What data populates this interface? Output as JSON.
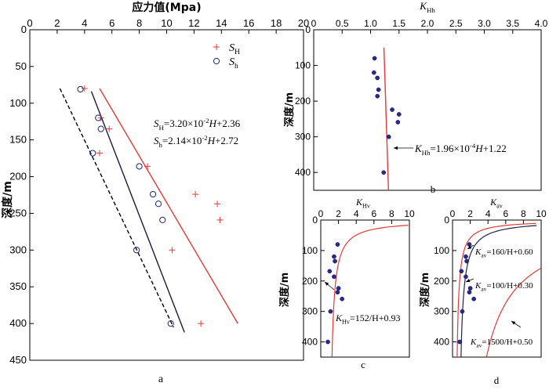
{
  "chart_data": [
    {
      "id": "a",
      "type": "scatter",
      "panel_label": "a",
      "x_title": "应力值(Mpa)",
      "y_title": "深度/m",
      "xlim": [
        0,
        20
      ],
      "ylim": [
        0,
        450
      ],
      "y_inverted": true,
      "x_ticks": [
        "0",
        "2",
        "4",
        "6",
        "8",
        "10",
        "12",
        "14",
        "16",
        "18",
        "20"
      ],
      "y_ticks": [
        "0",
        "50",
        "100",
        "150",
        "200",
        "250",
        "300",
        "350",
        "400",
        "450"
      ],
      "legend": [
        {
          "main": "S",
          "sub": "H",
          "marker": "plus",
          "color": "#e53935"
        },
        {
          "main": "S",
          "sub": "h",
          "marker": "circle",
          "color": "#1a237e"
        }
      ],
      "equations": [
        {
          "main": "S",
          "sub": "H",
          "text": "=3.20×10",
          "sup": "-2",
          "rest": "H+2.36"
        },
        {
          "main": "S",
          "sub": "h",
          "text": "=2.14×10",
          "sup": "-2",
          "rest": "H+2.72"
        }
      ],
      "series": [
        {
          "name": "SH",
          "marker": "plus",
          "color": "#e53935",
          "points": [
            [
              4.0,
              80
            ],
            [
              5.2,
              120
            ],
            [
              5.8,
              135
            ],
            [
              5.1,
              168
            ],
            [
              8.6,
              186
            ],
            [
              12.1,
              224
            ],
            [
              13.7,
              237
            ],
            [
              13.9,
              259
            ],
            [
              10.4,
              300
            ],
            [
              12.5,
              400
            ]
          ]
        },
        {
          "name": "Sh",
          "marker": "circle",
          "color": "#1a237e",
          "points": [
            [
              3.7,
              81
            ],
            [
              5.0,
              120
            ],
            [
              5.2,
              135
            ],
            [
              4.6,
              168
            ],
            [
              8.0,
              186
            ],
            [
              9.0,
              224
            ],
            [
              9.4,
              237
            ],
            [
              9.7,
              259
            ],
            [
              7.8,
              300
            ],
            [
              10.3,
              400
            ]
          ]
        }
      ],
      "lines": [
        {
          "color": "#e53935",
          "dash": false,
          "points": [
            [
              5.1,
              80
            ],
            [
              15.2,
              400
            ]
          ]
        },
        {
          "color": "#1a1a3a",
          "dash": false,
          "points": [
            [
              4.5,
              84
            ],
            [
              11.3,
              412
            ]
          ]
        },
        {
          "color": "#000000",
          "dash": true,
          "points": [
            [
              2.2,
              80
            ],
            [
              10.5,
              405
            ]
          ]
        }
      ]
    },
    {
      "id": "b",
      "type": "scatter",
      "panel_label": "b",
      "x_title_main": "K",
      "x_title_sub": "Hh",
      "y_title": "深度/m",
      "xlim": [
        0,
        4.0
      ],
      "ylim": [
        0,
        450
      ],
      "y_inverted": true,
      "x_ticks": [
        "0",
        "0.5",
        "1.0",
        "1.5",
        "2.0",
        "2.5",
        "3.0",
        "3.5",
        "4.0"
      ],
      "y_ticks": [
        "0",
        "100",
        "200",
        "300",
        "400"
      ],
      "equation": {
        "main": "K",
        "sub": "Hh",
        "text": "=1.96×10",
        "sup": "-4",
        "rest": "H+1.22"
      },
      "series": [
        {
          "name": "KHh",
          "marker": "dot",
          "color": "#2a2a8a",
          "points": [
            [
              1.07,
              80
            ],
            [
              1.06,
              120
            ],
            [
              1.12,
              135
            ],
            [
              1.14,
              168
            ],
            [
              1.12,
              186
            ],
            [
              1.38,
              224
            ],
            [
              1.5,
              237
            ],
            [
              1.48,
              259
            ],
            [
              1.32,
              300
            ],
            [
              1.23,
              400
            ]
          ]
        }
      ],
      "lines": [
        {
          "color": "#e53935",
          "dash": false,
          "points": [
            [
              1.235,
              50
            ],
            [
              1.315,
              450
            ]
          ]
        }
      ]
    },
    {
      "id": "c",
      "type": "line",
      "panel_label": "c",
      "x_title_main": "K",
      "x_title_sub": "Hv",
      "y_title": "深度/m",
      "xlim": [
        0,
        10
      ],
      "ylim": [
        0,
        450
      ],
      "y_inverted": true,
      "x_ticks": [
        "0",
        "2",
        "4",
        "6",
        "8",
        "10"
      ],
      "y_ticks": [
        "0",
        "100",
        "200",
        "300",
        "400"
      ],
      "equation": {
        "main": "K",
        "sub": "Hv",
        "text": "=152/H+0.93",
        "sup": "",
        "rest": ""
      },
      "curve": {
        "a": 152,
        "b": 0.93,
        "color": "#e53935"
      },
      "series": [
        {
          "name": "KHv",
          "marker": "dot",
          "color": "#2a2a8a",
          "points": [
            [
              1.9,
              80
            ],
            [
              1.5,
              120
            ],
            [
              1.6,
              135
            ],
            [
              1.0,
              168
            ],
            [
              1.5,
              186
            ],
            [
              2.0,
              224
            ],
            [
              1.9,
              237
            ],
            [
              2.4,
              259
            ],
            [
              1.1,
              300
            ],
            [
              0.8,
              400
            ]
          ]
        }
      ]
    },
    {
      "id": "d",
      "type": "line",
      "panel_label": "d",
      "x_title_main": "K",
      "x_title_sub": "av",
      "y_title": "深度/m",
      "xlim": [
        0,
        10
      ],
      "ylim": [
        0,
        450
      ],
      "y_inverted": true,
      "x_ticks": [
        "0",
        "2",
        "4",
        "6",
        "8",
        "10"
      ],
      "y_ticks": [
        "0",
        "100",
        "200",
        "300",
        "400"
      ],
      "equations": [
        {
          "main": "K",
          "sub": "av",
          "text": "=160/H+0.60",
          "sup": "",
          "rest": ""
        },
        {
          "main": "K",
          "sub": "av",
          "text": "=100/H+0.30",
          "sup": "",
          "rest": ""
        },
        {
          "main": "K",
          "sub": "av",
          "text": "=1500/H+0.50",
          "sup": "",
          "rest": ""
        }
      ],
      "curves": [
        {
          "a": 160,
          "b": 0.6,
          "color": "#22224a"
        },
        {
          "a": 100,
          "b": 0.3,
          "color": "#e53935"
        },
        {
          "a": 1500,
          "b": 0.5,
          "color": "#e53935"
        }
      ],
      "series": [
        {
          "name": "Kav",
          "marker": "dot",
          "color": "#2a2a8a",
          "points": [
            [
              1.9,
              80
            ],
            [
              1.5,
              120
            ],
            [
              1.6,
              135
            ],
            [
              1.0,
              168
            ],
            [
              1.5,
              186
            ],
            [
              2.0,
              224
            ],
            [
              1.9,
              237
            ],
            [
              2.4,
              259
            ],
            [
              1.1,
              300
            ],
            [
              0.8,
              400
            ]
          ]
        }
      ]
    }
  ]
}
